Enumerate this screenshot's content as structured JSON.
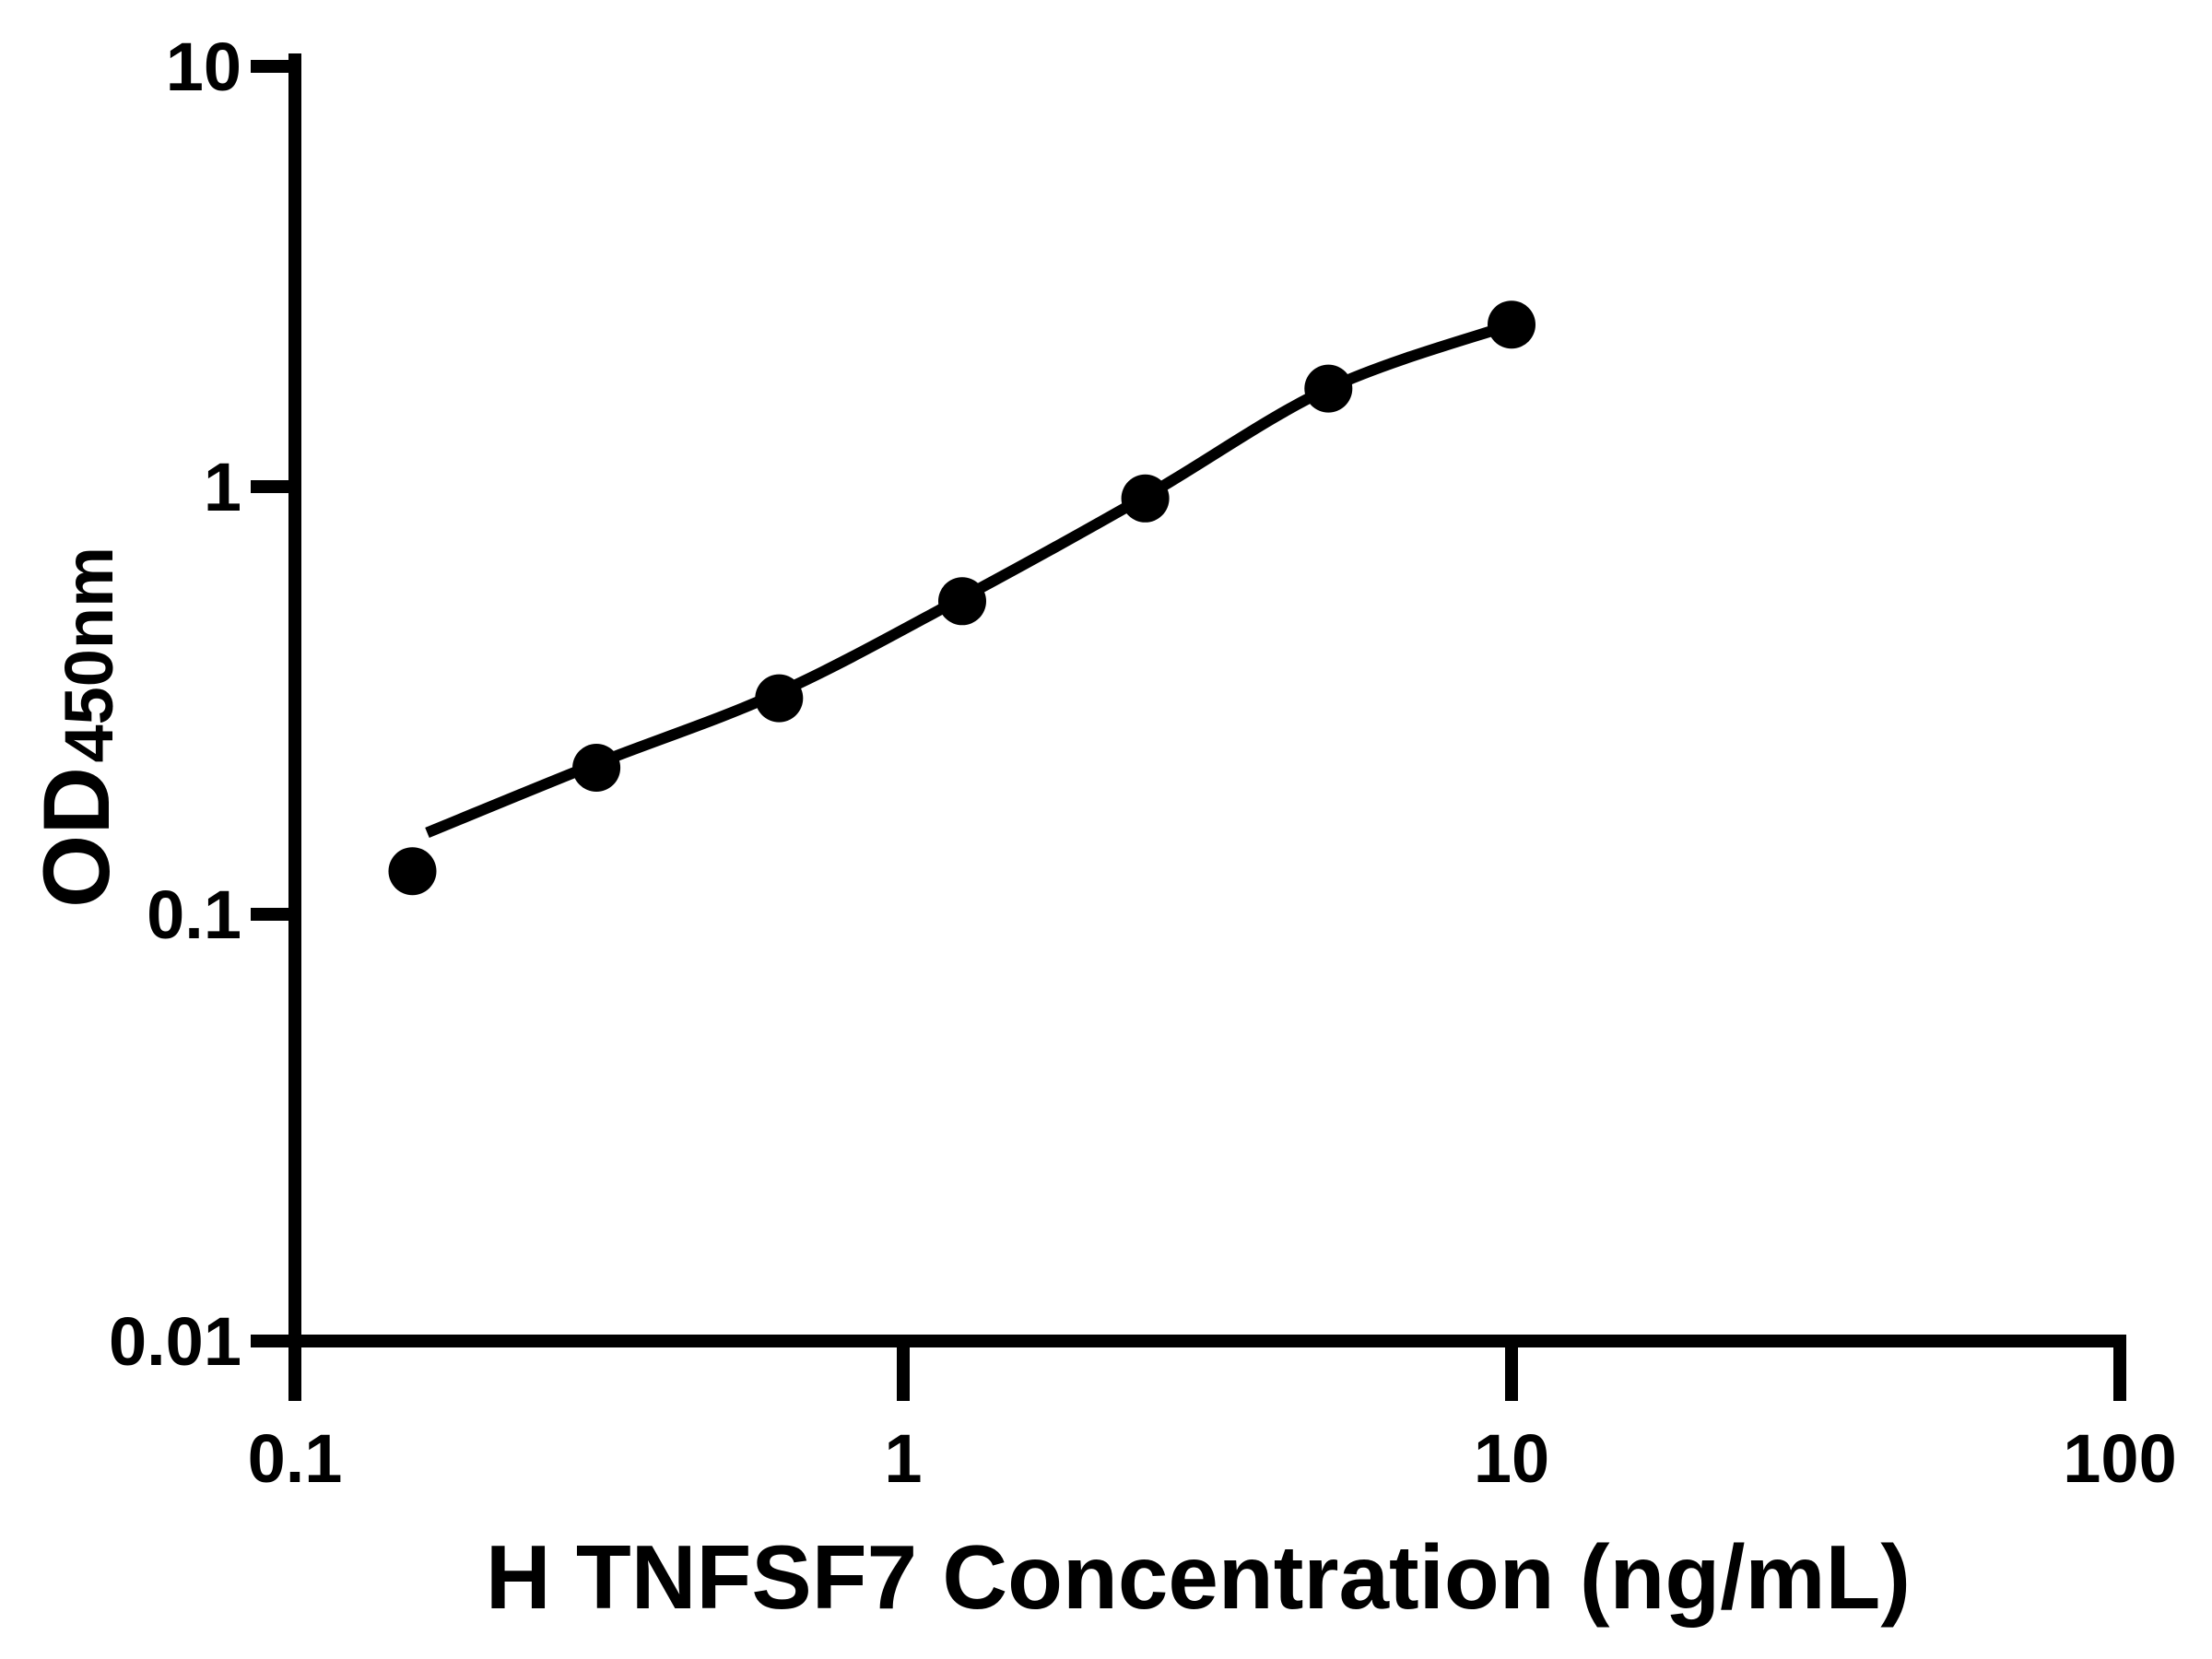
{
  "chart_data": {
    "type": "scatter",
    "title": "",
    "xlabel": "H TNFSF7 Concentration (ng/mL)",
    "ylabel_main": "OD",
    "ylabel_sub": "450nm",
    "x_scale": "log",
    "y_scale": "log",
    "xlim": [
      0.1,
      100
    ],
    "ylim": [
      0.01,
      10
    ],
    "x": [
      0.156,
      0.313,
      0.625,
      1.25,
      2.5,
      5,
      10
    ],
    "y": [
      0.126,
      0.22,
      0.32,
      0.54,
      0.94,
      1.7,
      2.4
    ],
    "fit_curve": [
      [
        0.165,
        0.155
      ],
      [
        0.313,
        0.225
      ],
      [
        0.625,
        0.33
      ],
      [
        1.25,
        0.55
      ],
      [
        2.5,
        0.95
      ],
      [
        5,
        1.7
      ],
      [
        10,
        2.4
      ]
    ],
    "x_ticks": [
      0.1,
      1,
      10,
      100
    ],
    "x_tick_labels": [
      "0.1",
      "1",
      "10",
      "100"
    ],
    "y_ticks": [
      0.01,
      0.1,
      1,
      10
    ],
    "y_tick_labels": [
      "0.01",
      "0.1",
      "1",
      "10"
    ],
    "grid": false,
    "legend": null,
    "marker_color": "#000000",
    "line_color": "#000000",
    "axis_color": "#000000",
    "background_color": "#ffffff"
  }
}
